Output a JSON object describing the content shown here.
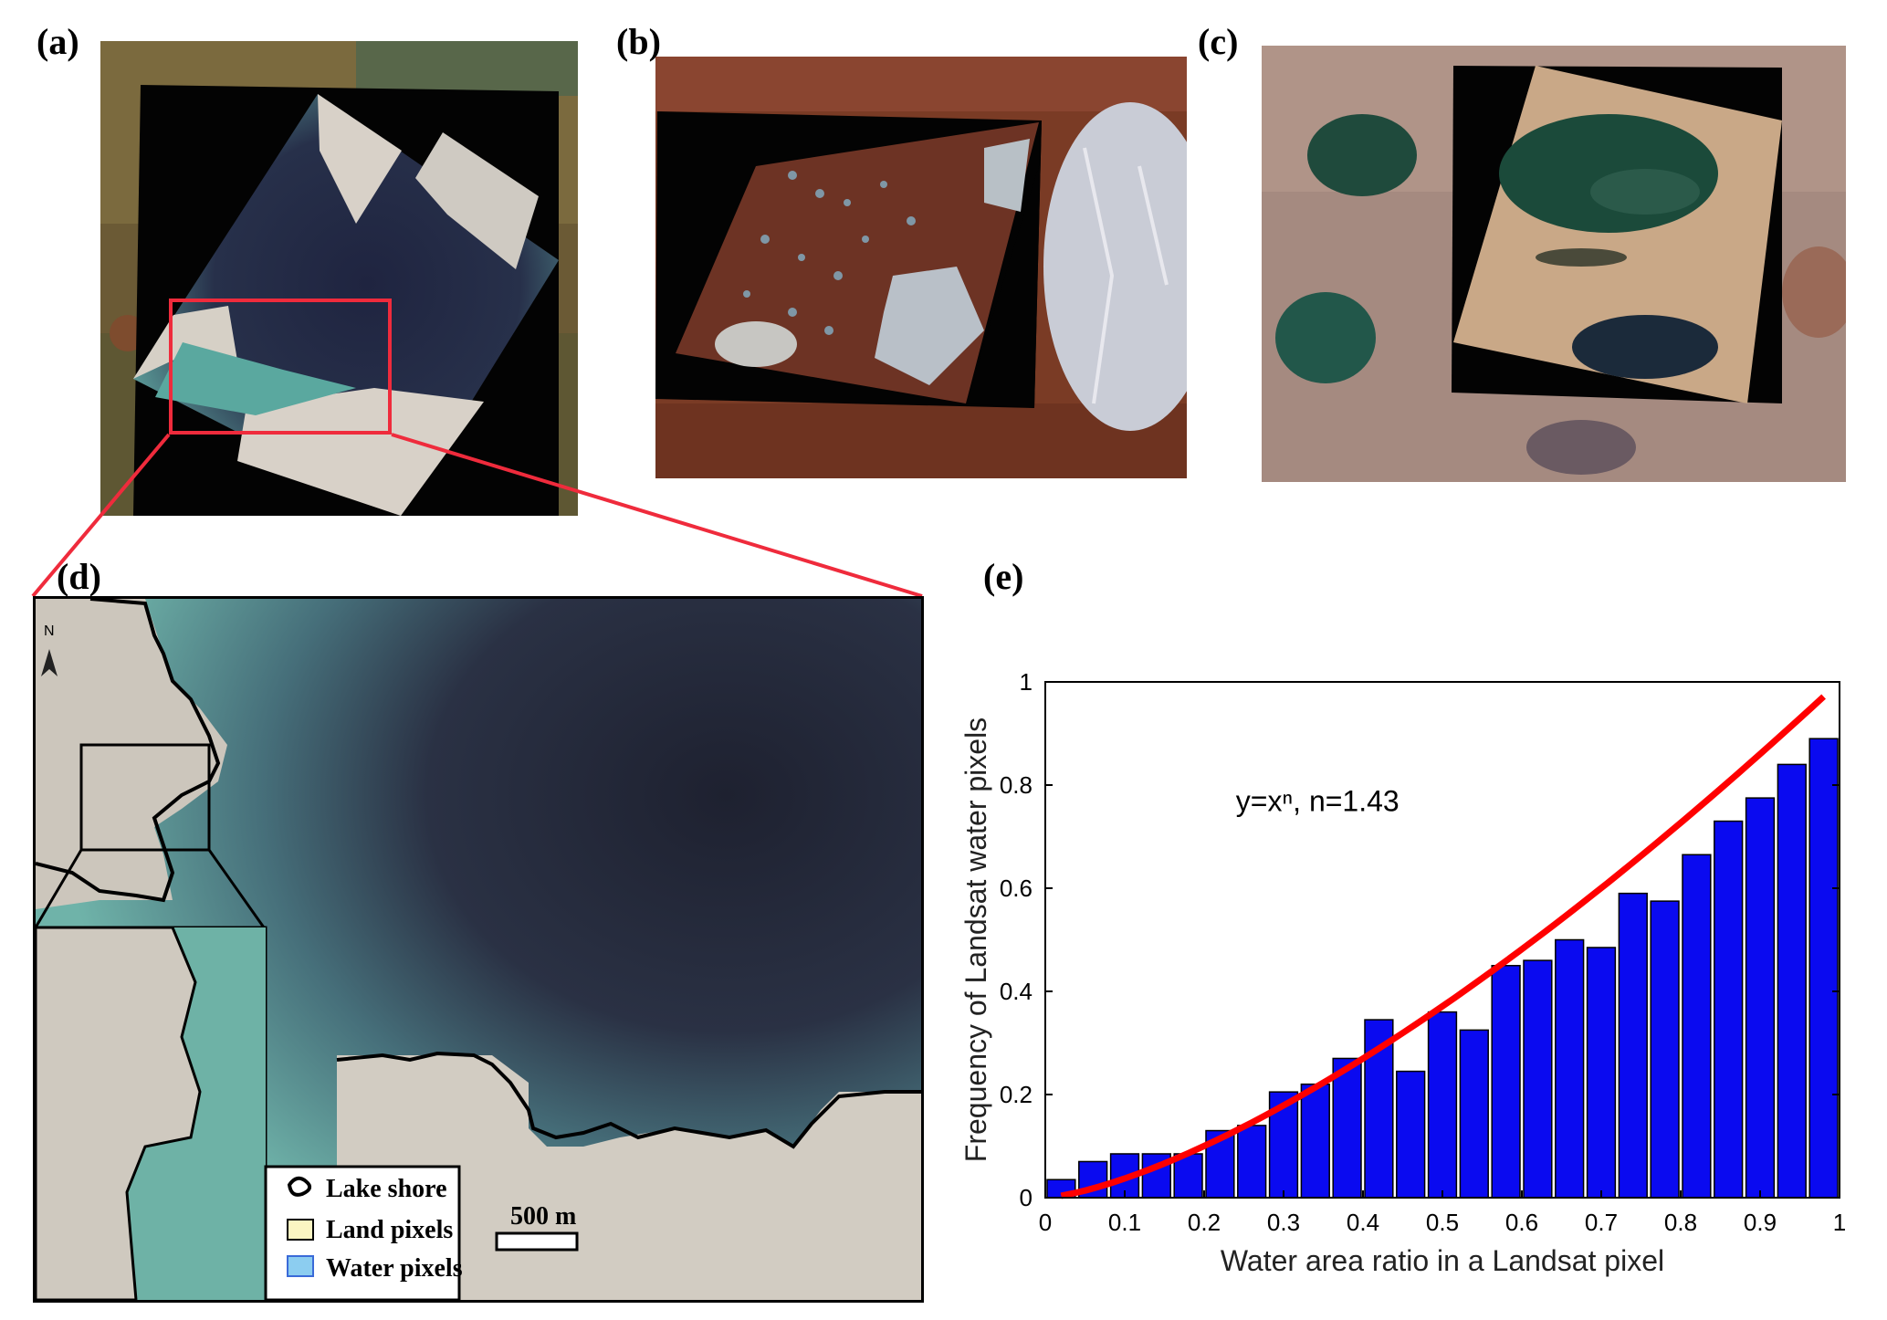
{
  "panels": {
    "a": {
      "label": "(a)"
    },
    "b": {
      "label": "(b)"
    },
    "c": {
      "label": "(c)"
    },
    "d": {
      "label": "(d)",
      "north_label": "N",
      "scale_label": "500 m",
      "legend": [
        {
          "label": "Lake shore",
          "kind": "line",
          "color": "#000000"
        },
        {
          "label": "Land pixels",
          "kind": "box",
          "color": "#fbf5c2"
        },
        {
          "label": "Water pixels",
          "kind": "box",
          "color": "#8ccdf0"
        }
      ]
    },
    "e": {
      "label": "(e)"
    }
  },
  "colors": {
    "bar": "#0a0af0",
    "fit": "#ff0000",
    "highlight_box": "#ef2b3c",
    "shore": "#000000"
  },
  "chart_data": {
    "type": "bar",
    "title": "",
    "xlabel": "Water area ratio in a Landsat pixel",
    "ylabel": "Frequency of Landsat water pixels",
    "xlim": [
      0,
      1
    ],
    "ylim": [
      0,
      1
    ],
    "xticks": [
      "0",
      "0.1",
      "0.2",
      "0.3",
      "0.4",
      "0.5",
      "0.6",
      "0.7",
      "0.8",
      "0.9",
      "1"
    ],
    "yticks": [
      "0",
      "0.2",
      "0.4",
      "0.6",
      "0.8",
      "1"
    ],
    "annotation": "y=xⁿ, n=1.43",
    "bin_width": 0.04,
    "x": [
      0.0,
      0.04,
      0.08,
      0.12,
      0.16,
      0.2,
      0.24,
      0.28,
      0.32,
      0.36,
      0.4,
      0.44,
      0.48,
      0.52,
      0.56,
      0.6,
      0.64,
      0.68,
      0.72,
      0.76,
      0.8,
      0.84,
      0.88,
      0.92,
      0.96
    ],
    "values": [
      0.035,
      0.07,
      0.085,
      0.085,
      0.085,
      0.13,
      0.14,
      0.205,
      0.22,
      0.27,
      0.345,
      0.245,
      0.36,
      0.325,
      0.45,
      0.46,
      0.5,
      0.485,
      0.59,
      0.575,
      0.665,
      0.73,
      0.775,
      0.84,
      0.89
    ],
    "fit": {
      "type": "power",
      "n": 1.43,
      "x_range": [
        0.02,
        0.98
      ]
    },
    "grid": false
  }
}
